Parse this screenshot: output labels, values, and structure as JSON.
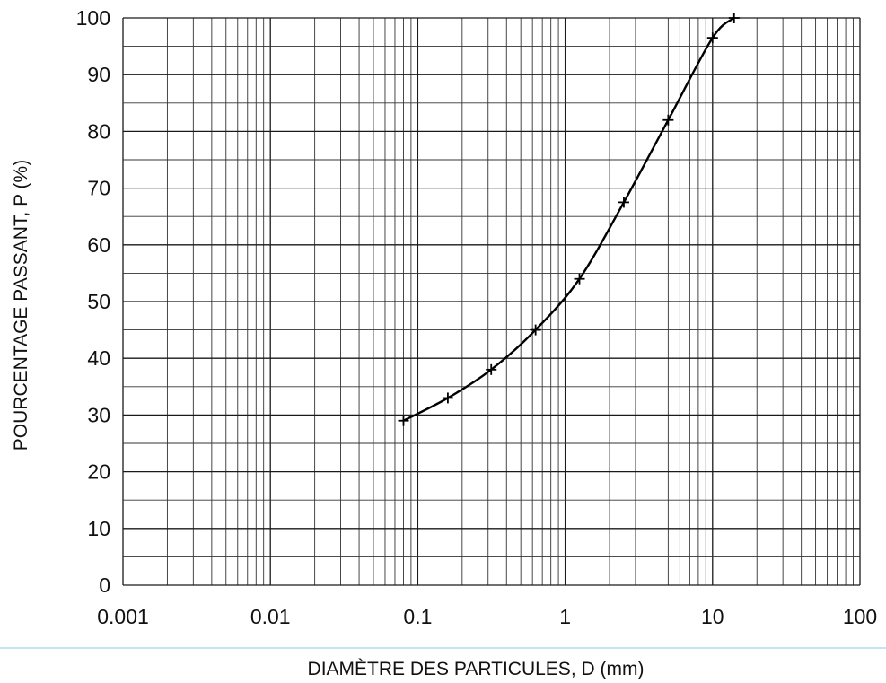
{
  "chart_data": {
    "type": "line",
    "title": "",
    "xlabel": "DIAMÈTRE DES PARTICULES, D (mm)",
    "ylabel": "POURCENTAGE PASSANT, P (%)",
    "xscale": "log",
    "xlim": [
      0.001,
      100
    ],
    "ylim": [
      0,
      100
    ],
    "x_ticks": [
      0.001,
      0.01,
      0.1,
      1,
      10,
      100
    ],
    "x_tick_labels": [
      "0.001",
      "0.01",
      "0.1",
      "1",
      "10",
      "100"
    ],
    "y_ticks": [
      0,
      10,
      20,
      30,
      40,
      50,
      60,
      70,
      80,
      90,
      100
    ],
    "y_tick_labels": [
      "0",
      "10",
      "20",
      "30",
      "40",
      "50",
      "60",
      "70",
      "80",
      "90",
      "100"
    ],
    "grid": "on (major and minor log grid, horizontal lines every 5%)",
    "legend": "none",
    "series": [
      {
        "marker": "plus",
        "color": "#000000",
        "x": [
          0.08,
          0.16,
          0.315,
          0.63,
          1.25,
          2.5,
          5,
          10,
          14
        ],
        "y": [
          29,
          33,
          38,
          45,
          54,
          67.5,
          82,
          96.5,
          100
        ]
      }
    ]
  }
}
